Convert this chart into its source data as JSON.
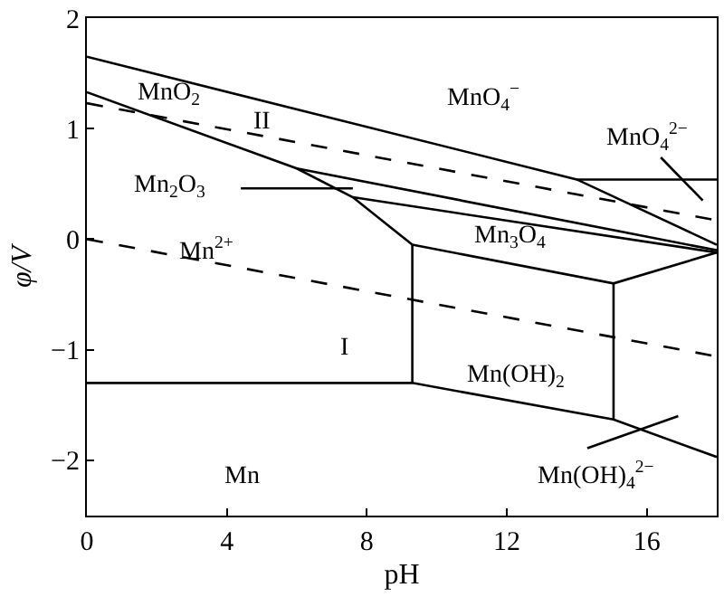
{
  "chart_data": {
    "type": "line",
    "xlabel": "pH",
    "ylabel": "φ/V",
    "xlim": [
      0,
      18
    ],
    "ylim": [
      -2.5,
      2
    ],
    "xticks": [
      0,
      4,
      8,
      12,
      16
    ],
    "yticks": [
      -2,
      -1,
      0,
      1,
      2
    ],
    "marker": "none",
    "series": [
      {
        "color": "#000000",
        "x": [
          0,
          14,
          18
        ],
        "values": [
          1.65,
          0.54,
          -0.05
        ]
      },
      {
        "color": "#000000",
        "x": [
          14,
          18
        ],
        "values": [
          0.54,
          0.54
        ]
      },
      {
        "color": "#000000",
        "x": [
          0,
          6.0,
          7.6,
          9.3
        ],
        "values": [
          1.33,
          0.64,
          0.38,
          -0.05
        ]
      },
      {
        "color": "#000000",
        "x": [
          6.0,
          18
        ],
        "values": [
          0.64,
          -0.1
        ]
      },
      {
        "color": "#000000",
        "x": [
          7.6,
          18
        ],
        "values": [
          0.38,
          -0.12
        ]
      },
      {
        "color": "#000000",
        "x": [
          9.3,
          15.05,
          18
        ],
        "values": [
          -0.05,
          -0.4,
          -0.12
        ]
      },
      {
        "color": "#000000",
        "x": [
          9.3,
          9.3
        ],
        "values": [
          -0.05,
          -1.3
        ]
      },
      {
        "color": "#000000",
        "x": [
          15.05,
          15.05
        ],
        "values": [
          -0.4,
          -1.63
        ]
      },
      {
        "color": "#000000",
        "x": [
          0,
          9.3,
          15.05,
          18
        ],
        "values": [
          -1.3,
          -1.3,
          -1.63,
          -1.97
        ]
      },
      {
        "color": "#000000",
        "line_style": "dashed",
        "x": [
          0,
          18
        ],
        "values": [
          0,
          -1.06
        ]
      },
      {
        "color": "#000000",
        "line_style": "dashed",
        "x": [
          0,
          18
        ],
        "values": [
          1.23,
          0.17
        ]
      },
      {
        "color": "#000000",
        "x": [
          4.4,
          7.6
        ],
        "values": [
          0.46,
          0.46
        ]
      },
      {
        "color": "#000000",
        "x": [
          16.4,
          17.6
        ],
        "values": [
          0.74,
          0.35
        ]
      },
      {
        "color": "#000000",
        "x": [
          14.3,
          16.9
        ],
        "values": [
          -1.89,
          -1.6
        ]
      }
    ],
    "annotations": [
      "MnO$_{2}$",
      "MnO$_{4}$$^{−}$",
      "MnO$_{4}$$^{2−}$",
      "Mn$_{2}$O$_{3}$",
      "Mn$^{2+}$",
      "II",
      "I",
      "Mn$_{3}$O$_{4}$",
      "Mn(OH)$_{2}$",
      "Mn",
      "Mn(OH)$_{4}$$^{2−}$"
    ]
  }
}
